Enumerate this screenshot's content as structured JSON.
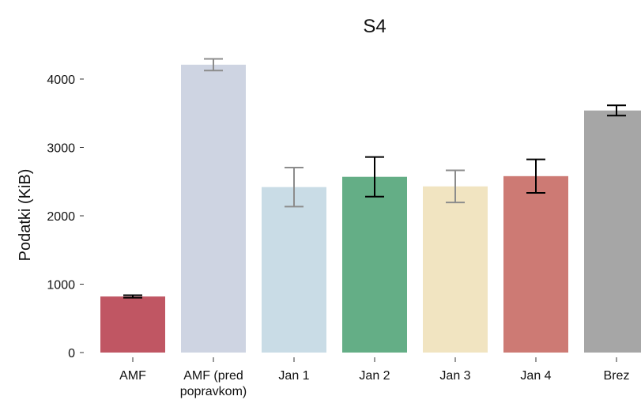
{
  "chart_data": {
    "type": "bar",
    "title": "S4",
    "xlabel": "",
    "ylabel": "Podatki (KiB)",
    "ylim": [
      0,
      4500
    ],
    "yticks": [
      0,
      1000,
      2000,
      3000,
      4000
    ],
    "grid": false,
    "categories": [
      [
        "AMF"
      ],
      [
        "AMF (pred",
        "popravkom)"
      ],
      [
        "Jan 1"
      ],
      [
        "Jan 2"
      ],
      [
        "Jan 3"
      ],
      [
        "Jan 4"
      ],
      [
        "Brez"
      ]
    ],
    "values": [
      820,
      4210,
      2420,
      2570,
      2430,
      2580,
      3540
    ],
    "errors": [
      18,
      85,
      285,
      290,
      235,
      245,
      75
    ],
    "colors": [
      "#c05663",
      "#ced4e2",
      "#c9dce6",
      "#64ae86",
      "#f1e4c1",
      "#cd7a74",
      "#a6a6a6"
    ],
    "error_colors": [
      "#000000",
      "#8c8c8c",
      "#8c8c8c",
      "#000000",
      "#8c8c8c",
      "#000000",
      "#000000"
    ]
  }
}
